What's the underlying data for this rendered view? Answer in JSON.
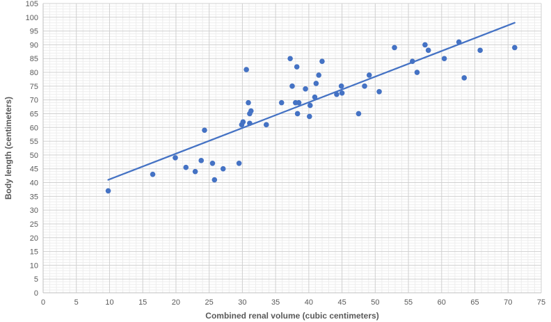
{
  "chart_data": {
    "type": "scatter",
    "title": "",
    "xlabel": "Combined renal volume (cubic centimeters)",
    "ylabel": "Body length (centimeters)",
    "xlim": [
      0,
      75
    ],
    "ylim": [
      0,
      105
    ],
    "x_major_step": 5,
    "y_major_step": 5,
    "x_minor_step": 1,
    "y_minor_step": 1,
    "grid": true,
    "legend": "none",
    "marker_color": "#4472C4",
    "trendline_color": "#4472C4",
    "x_ticks": [
      "0",
      "5",
      "10",
      "15",
      "20",
      "25",
      "30",
      "35",
      "40",
      "45",
      "50",
      "55",
      "60",
      "65",
      "70",
      "75"
    ],
    "y_ticks": [
      "0",
      "5",
      "10",
      "15",
      "20",
      "25",
      "30",
      "35",
      "40",
      "45",
      "50",
      "55",
      "60",
      "65",
      "70",
      "75",
      "80",
      "85",
      "90",
      "95",
      "100",
      "105"
    ],
    "points": [
      [
        9.8,
        37
      ],
      [
        16.5,
        43
      ],
      [
        19.9,
        49
      ],
      [
        21.5,
        45.5
      ],
      [
        22.9,
        44
      ],
      [
        23.8,
        48
      ],
      [
        24.3,
        59
      ],
      [
        25.5,
        47
      ],
      [
        25.8,
        41
      ],
      [
        27.1,
        45
      ],
      [
        29.5,
        47
      ],
      [
        29.9,
        61
      ],
      [
        30.1,
        62
      ],
      [
        30.6,
        81
      ],
      [
        30.9,
        69
      ],
      [
        31.1,
        61.5
      ],
      [
        31.1,
        65
      ],
      [
        31.3,
        66
      ],
      [
        33.6,
        61
      ],
      [
        35.9,
        69
      ],
      [
        37.2,
        85
      ],
      [
        37.5,
        75
      ],
      [
        38.0,
        69
      ],
      [
        38.2,
        82
      ],
      [
        38.3,
        65
      ],
      [
        38.5,
        69
      ],
      [
        39.5,
        74
      ],
      [
        40.1,
        64
      ],
      [
        40.2,
        68
      ],
      [
        40.9,
        71
      ],
      [
        41.1,
        76
      ],
      [
        41.5,
        79
      ],
      [
        42.0,
        84
      ],
      [
        44.2,
        72
      ],
      [
        44.9,
        75
      ],
      [
        45.0,
        72.5
      ],
      [
        47.5,
        65
      ],
      [
        48.4,
        75
      ],
      [
        49.1,
        79
      ],
      [
        50.6,
        73
      ],
      [
        52.9,
        89
      ],
      [
        55.6,
        84
      ],
      [
        56.3,
        80
      ],
      [
        57.5,
        90
      ],
      [
        58.0,
        88
      ],
      [
        60.4,
        85
      ],
      [
        62.6,
        91
      ],
      [
        63.4,
        78
      ],
      [
        65.8,
        88
      ],
      [
        71.0,
        89
      ]
    ],
    "trendline": {
      "x": [
        9.8,
        71.0
      ],
      "y": [
        41,
        98
      ]
    }
  }
}
